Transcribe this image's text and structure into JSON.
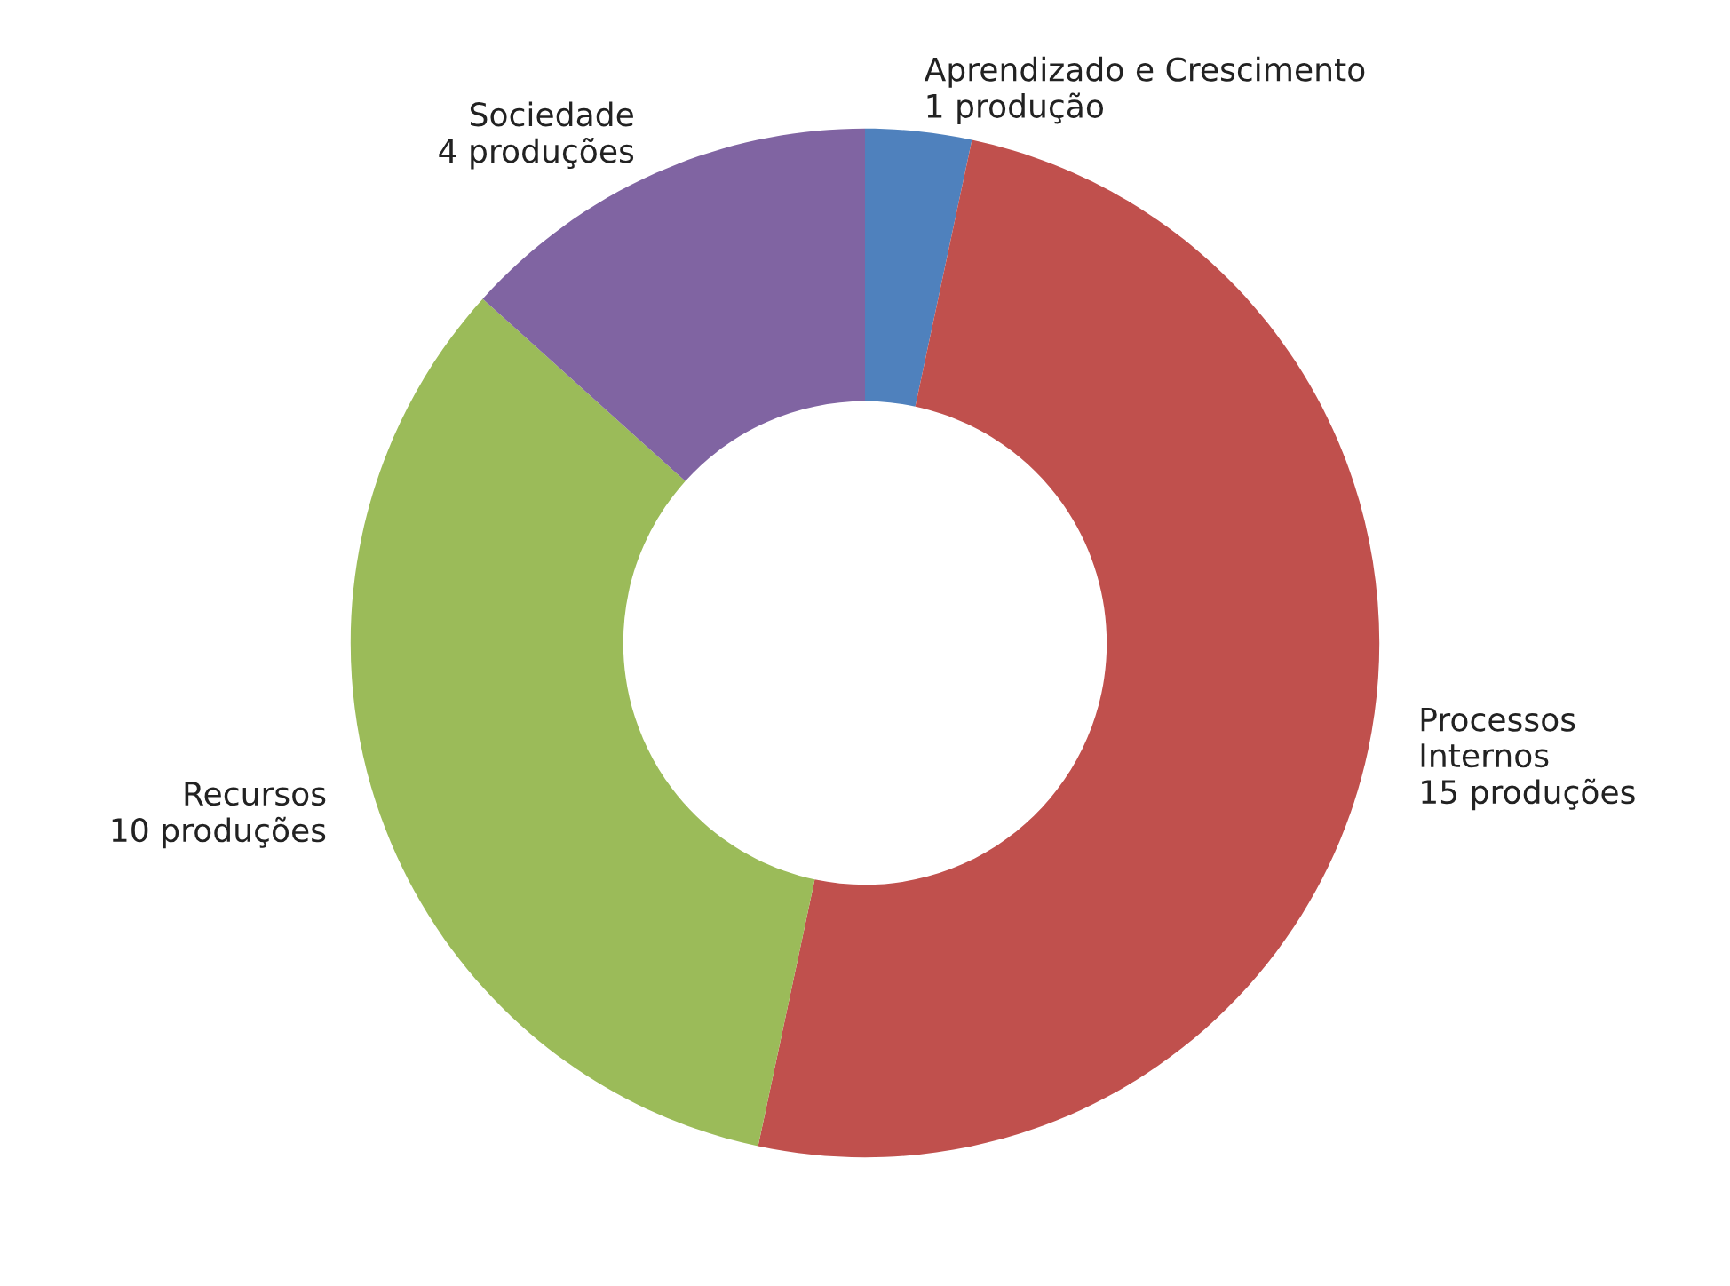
{
  "chart_data": {
    "type": "donut",
    "categories": [
      "Aprendizado e Crescimento",
      "Processos\nInternos",
      "Recursos",
      "Sociedade"
    ],
    "values": [
      1,
      15,
      10,
      4
    ],
    "colors": [
      "#4f81bd",
      "#c0504d",
      "#9bbb59",
      "#8064a2"
    ],
    "value_labels": [
      "1 produção",
      "15 produções",
      "10 produções",
      "4 produções"
    ],
    "legend": false
  }
}
